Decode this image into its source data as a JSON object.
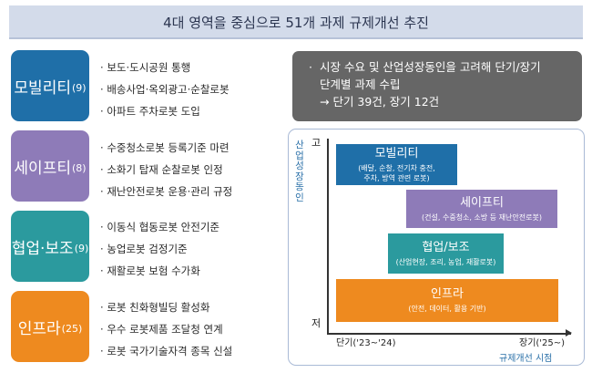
{
  "title": "4대 영역을 중심으로 51개 과제 규제개선 추진",
  "categories": [
    {
      "name": "모빌리티",
      "count": "(9)",
      "color": "#1f6fa8",
      "items": [
        "보도·도시공원 통행",
        "배송사업·옥외광고·순찰로봇",
        "아파트 주차로봇 도입"
      ]
    },
    {
      "name": "세이프티",
      "count": "(8)",
      "color": "#8e7bb8",
      "items": [
        "수중청소로봇 등록기준 마련",
        "소화기 탑재 순찰로봇 인정",
        "재난안전로봇 운용·관리 규정"
      ]
    },
    {
      "name": "협업·보조",
      "count": "(9)",
      "color": "#2b9a9e",
      "items": [
        "이동식 협동로봇 안전기준",
        "농업로봇 검정기준",
        "재활로봇 보험 수가화"
      ]
    },
    {
      "name": "인프라",
      "count": "(25)",
      "color": "#ee8a1f",
      "items": [
        "로봇 친화형빌딩 활성화",
        "우수 로봇제품 조달청 연계",
        "로봇 국가기술자격 종목 신설"
      ]
    }
  ],
  "callout": {
    "line1": "시장 수요 및 산업성장동인을 고려해 단기/장기",
    "line2": "단계별 과제 수립",
    "line3": "→ 단기 39건, 장기 12건"
  },
  "chart_data": {
    "type": "diagram",
    "ylabel": "산업성장동인",
    "y_high": "고",
    "y_low": "저",
    "x_start": "단기('23~'24)",
    "x_end": "장기('25~)",
    "xlabel": "규제개선 시점",
    "boxes": [
      {
        "title": "모빌리티",
        "sub1": "(배달, 순찰, 전기차 충전,",
        "sub2": "주차, 방역 관련 로봇)",
        "color": "#1f6fa8"
      },
      {
        "title": "세이프티",
        "sub1": "(건설, 수중청소, 소방 등 재난안전로봇)",
        "sub2": "",
        "color": "#8e7bb8"
      },
      {
        "title": "협업/보조",
        "sub1": "(산업현장, 조리, 농업, 재활로봇)",
        "sub2": "",
        "color": "#2b9a9e"
      },
      {
        "title": "인프라",
        "sub1": "(안전, 데이터, 활용 기반)",
        "sub2": "",
        "color": "#ee8a1f"
      }
    ]
  }
}
